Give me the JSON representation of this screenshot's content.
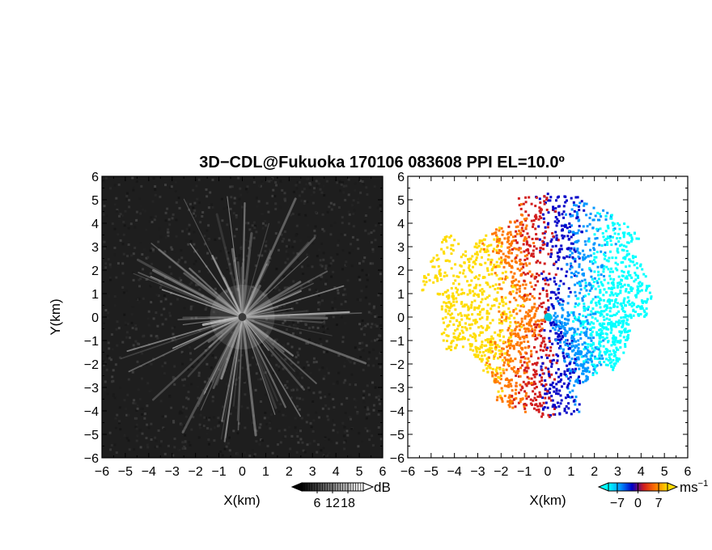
{
  "title": "3D−CDL@Fukuoka 170106 083608 PPI EL=10.0º",
  "chart_data": [
    {
      "type": "heatmap",
      "quantity": "intensity",
      "xlabel": "X(km)",
      "ylabel": "Y(km)",
      "xlim": [
        -6,
        6
      ],
      "ylim": [
        -6,
        6
      ],
      "x_ticks": [
        "−6",
        "−5",
        "−4",
        "−3",
        "−2",
        "−1",
        "0",
        "1",
        "2",
        "3",
        "4",
        "5",
        "6"
      ],
      "y_ticks": [
        "−6",
        "−5",
        "−4",
        "−3",
        "−2",
        "−1",
        "0",
        "1",
        "2",
        "3",
        "4",
        "5",
        "6"
      ],
      "colorbar": {
        "unit": "dB",
        "ticks": [
          "6",
          "12",
          "18"
        ],
        "tick_values": [
          6,
          12,
          18
        ],
        "range": [
          0,
          24
        ],
        "colors": [
          "#000000",
          "#ffffff"
        ]
      },
      "background_color": "#1e1e1e",
      "center_marker_color": "#3a3a3a"
    },
    {
      "type": "heatmap",
      "quantity": "radial velocity",
      "xlabel": "X(km)",
      "xlim": [
        -6,
        6
      ],
      "ylim": [
        -6,
        6
      ],
      "x_ticks": [
        "−6",
        "−5",
        "−4",
        "−3",
        "−2",
        "−1",
        "0",
        "1",
        "2",
        "3",
        "4",
        "5",
        "6"
      ],
      "y_ticks": [
        "−6",
        "−5",
        "−4",
        "−3",
        "−2",
        "−1",
        "0",
        "1",
        "2",
        "3",
        "4",
        "5",
        "6"
      ],
      "colorbar": {
        "unit": "ms",
        "unit_exponent": "−1",
        "ticks": [
          "−7",
          "0",
          "7"
        ],
        "tick_values": [
          -7,
          0,
          7
        ],
        "range": [
          -10,
          10
        ],
        "colors": [
          "#00ffff",
          "#0096ff",
          "#0000c8",
          "#d21e1e",
          "#ff7800",
          "#ffdc00"
        ]
      },
      "center_marker_color": "#00c8dc"
    }
  ]
}
